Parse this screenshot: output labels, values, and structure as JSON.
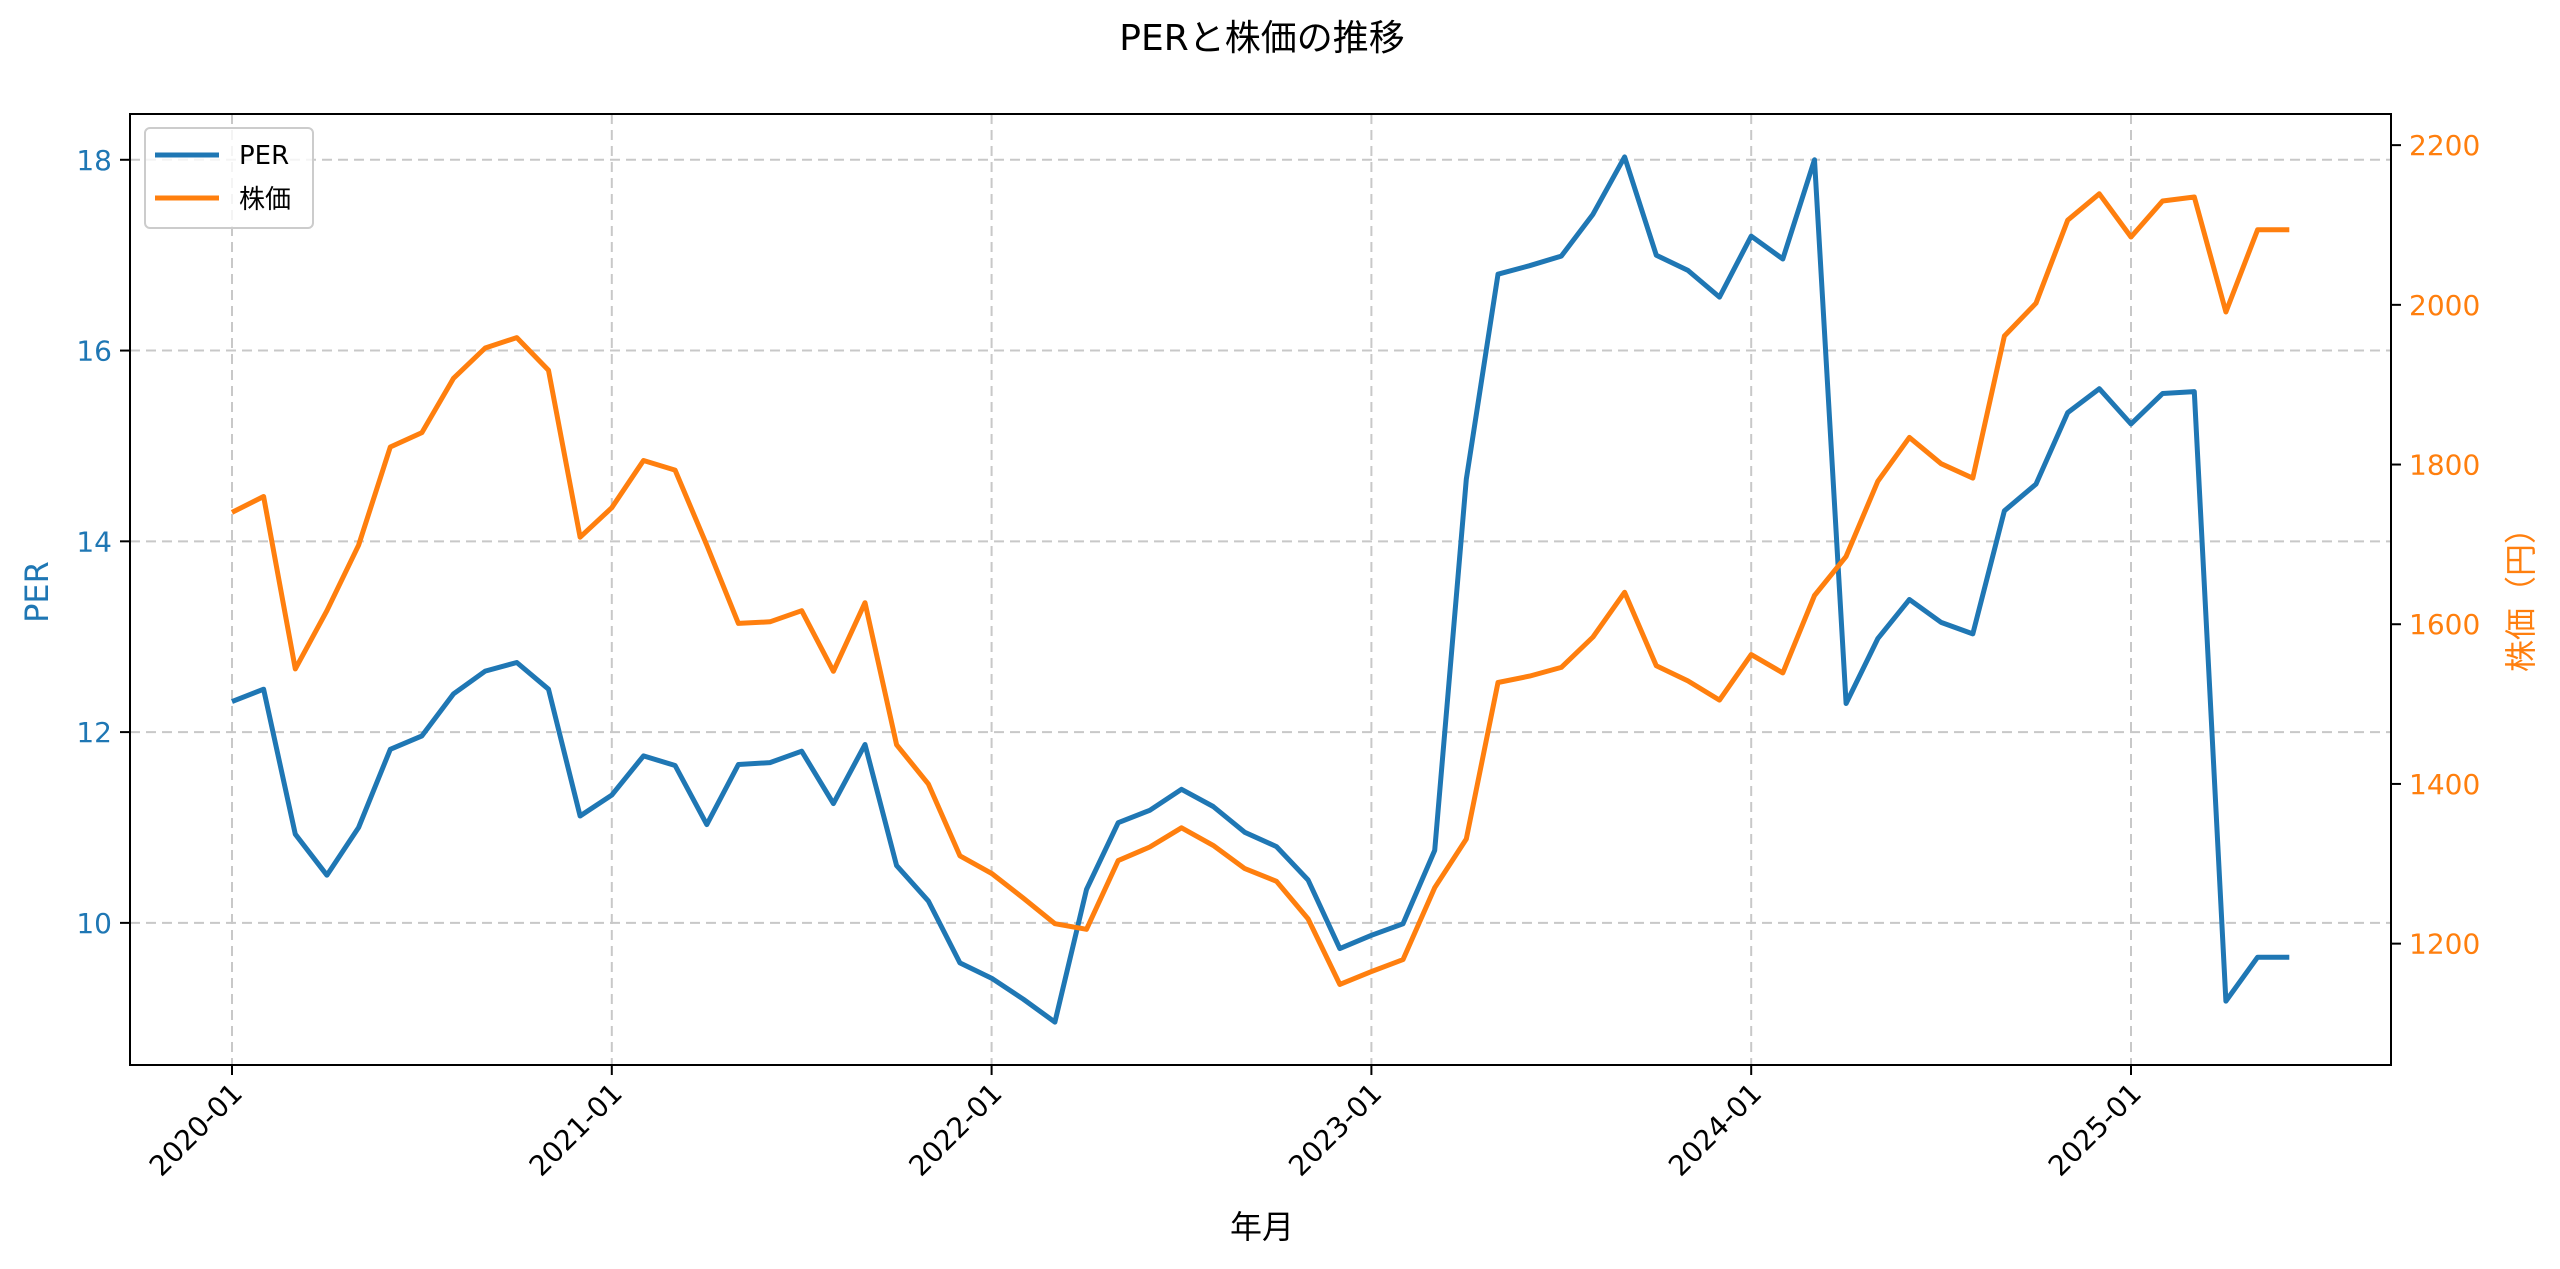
{
  "chart_data": {
    "type": "line",
    "title": "PERと株価の推移",
    "xlabel": "年月",
    "ylabel": "PER",
    "ylabel_right": "株価（円）",
    "x_tick_labels": [
      "2020-01",
      "2021-01",
      "2022-01",
      "2023-01",
      "2024-01",
      "2025-01"
    ],
    "y_ticks_left": [
      10,
      12,
      14,
      16,
      18
    ],
    "y_ticks_right": [
      1200,
      1400,
      1600,
      1800,
      2000,
      2200
    ],
    "ylim_left": [
      8.51,
      18.48
    ],
    "ylim_right": [
      1048,
      2239
    ],
    "grid": true,
    "legend_position": "upper left",
    "x": [
      "2020-01",
      "2020-02",
      "2020-03",
      "2020-04",
      "2020-05",
      "2020-06",
      "2020-07",
      "2020-08",
      "2020-09",
      "2020-10",
      "2020-11",
      "2020-12",
      "2021-01",
      "2021-02",
      "2021-03",
      "2021-04",
      "2021-05",
      "2021-06",
      "2021-07",
      "2021-08",
      "2021-09",
      "2021-10",
      "2021-11",
      "2021-12",
      "2022-01",
      "2022-02",
      "2022-03",
      "2022-04",
      "2022-05",
      "2022-06",
      "2022-07",
      "2022-08",
      "2022-09",
      "2022-10",
      "2022-11",
      "2022-12",
      "2023-01",
      "2023-02",
      "2023-03",
      "2023-04",
      "2023-05",
      "2023-06",
      "2023-07",
      "2023-08",
      "2023-09",
      "2023-10",
      "2023-11",
      "2023-12",
      "2024-01",
      "2024-02",
      "2024-03",
      "2024-04",
      "2024-05",
      "2024-06",
      "2024-07",
      "2024-08",
      "2024-09",
      "2024-10",
      "2024-11",
      "2024-12",
      "2025-01",
      "2025-02",
      "2025-03",
      "2025-04",
      "2025-05",
      "2025-06"
    ],
    "series": [
      {
        "name": "PER",
        "axis": "left",
        "color": "#1f77b4",
        "values": [
          12.32,
          12.45,
          10.93,
          10.5,
          11.0,
          11.82,
          11.96,
          12.4,
          12.64,
          12.73,
          12.45,
          11.12,
          11.34,
          11.75,
          11.65,
          11.03,
          11.66,
          11.68,
          11.8,
          11.25,
          11.87,
          10.6,
          10.23,
          9.58,
          9.42,
          9.2,
          8.96,
          10.35,
          11.05,
          11.18,
          11.4,
          11.22,
          10.95,
          10.8,
          10.45,
          9.73,
          9.87,
          9.99,
          10.76,
          14.65,
          16.8,
          16.89,
          16.99,
          17.43,
          18.03,
          17.0,
          16.84,
          16.56,
          17.2,
          16.96,
          18.0,
          12.3,
          12.98,
          13.39,
          13.15,
          13.03,
          14.32,
          14.6,
          15.35,
          15.6,
          15.23,
          15.55,
          15.57,
          9.18,
          9.64,
          9.64
        ]
      },
      {
        "name": "株価",
        "axis": "right",
        "color": "#ff7f0e",
        "values": [
          1740,
          1760,
          1544,
          1617,
          1699,
          1822,
          1840,
          1908,
          1946,
          1959,
          1918,
          1709,
          1746,
          1805,
          1793,
          1699,
          1601,
          1603,
          1617,
          1541,
          1627,
          1449,
          1400,
          1310,
          1288,
          1257,
          1225,
          1218,
          1304,
          1321,
          1345,
          1323,
          1294,
          1278,
          1231,
          1149,
          1165,
          1180,
          1270,
          1331,
          1527,
          1535,
          1546,
          1584,
          1640,
          1548,
          1529,
          1505,
          1562,
          1539,
          1636,
          1685,
          1779,
          1834,
          1801,
          1783,
          1961,
          2002,
          2106,
          2139,
          2085,
          2130,
          2135,
          1991,
          2094,
          2094
        ]
      }
    ]
  },
  "colors": {
    "per": "#1f77b4",
    "price": "#ff7f0e",
    "grid": "#c8c8c8",
    "axis": "#000000"
  }
}
